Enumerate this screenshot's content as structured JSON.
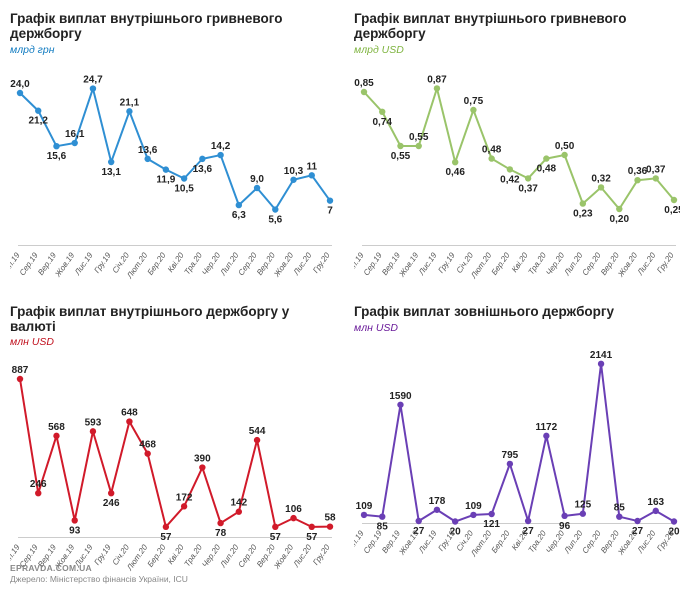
{
  "background_color": "#ffffff",
  "x_categories": [
    "Лип.19",
    "Сер.19",
    "Вер.19",
    "Жов.19",
    "Лис.19",
    "Гру.19",
    "Січ.20",
    "Лют.20",
    "Бер.20",
    "Кві.20",
    "Тра.20",
    "Чер.20",
    "Лип.20",
    "Сер.20",
    "Вер.20",
    "Жов.20",
    "Лис.20",
    "Гру.20"
  ],
  "x_label_fontsize": 8,
  "x_label_rotation_deg": -55,
  "value_label_fontsize": 10,
  "value_label_fontweight": "bold",
  "charts": [
    {
      "title": "Графік виплат внутрішнього гривневого держборгу",
      "subtitle": "млрд грн",
      "subtitle_color": "#0f7ac0",
      "line_color": "#2f8fd3",
      "line_width": 2,
      "marker_color": "#2f8fd3",
      "marker_size": 3.2,
      "ylim": [
        0,
        27
      ],
      "values": [
        24.0,
        21.2,
        15.6,
        16.1,
        24.7,
        13.1,
        21.1,
        13.6,
        11.9,
        10.5,
        13.6,
        14.2,
        6.3,
        9.0,
        5.6,
        10.3,
        11,
        7
      ],
      "labels": [
        "24,0",
        "21,2",
        "15,6",
        "16,1",
        "24,7",
        "13,1",
        "21,1",
        "13,6",
        "11,9",
        "10,5",
        "13,6",
        "14,2",
        "6,3",
        "9,0",
        "5,6",
        "10,3",
        "11",
        "7"
      ],
      "label_positions": [
        "above",
        "below",
        "below",
        "above",
        "above",
        "below",
        "above",
        "above",
        "below",
        "below",
        "below",
        "above",
        "below",
        "above",
        "below",
        "above",
        "above",
        "below"
      ]
    },
    {
      "title": "Графік виплат внутрішнього гривневого держборгу",
      "subtitle": "млрд USD",
      "subtitle_color": "#7fb440",
      "line_color": "#9ac46a",
      "line_width": 2,
      "marker_color": "#9ac46a",
      "marker_size": 3.2,
      "ylim": [
        0,
        0.95
      ],
      "values": [
        0.85,
        0.74,
        0.55,
        0.55,
        0.87,
        0.46,
        0.75,
        0.48,
        0.42,
        0.37,
        0.48,
        0.5,
        0.23,
        0.32,
        0.2,
        0.36,
        0.37,
        0.25
      ],
      "labels": [
        "0,85",
        "0,74",
        "0,55",
        "0,55",
        "0,87",
        "0,46",
        "0,75",
        "0,48",
        "0,42",
        "0,37",
        "0,48",
        "0,50",
        "0,23",
        "0,32",
        "0,20",
        "0,36",
        "0,37",
        "0,25"
      ],
      "label_positions": [
        "above",
        "below",
        "below",
        "above",
        "above",
        "below",
        "above",
        "above",
        "below",
        "below",
        "below",
        "above",
        "below",
        "above",
        "below",
        "above",
        "above",
        "below"
      ]
    },
    {
      "title": "Графік виплат внутрішнього держборгу у валюті",
      "subtitle": "млн USD",
      "subtitle_color": "#c1121f",
      "line_color": "#d11a2a",
      "line_width": 2,
      "marker_color": "#d11a2a",
      "marker_size": 3.2,
      "ylim": [
        0,
        960
      ],
      "values": [
        887,
        246,
        568,
        93,
        593,
        246,
        648,
        468,
        57,
        172,
        390,
        78,
        142,
        544,
        57,
        106,
        57,
        58
      ],
      "labels": [
        "887",
        "246",
        "568",
        "93",
        "593",
        "246",
        "648",
        "468",
        "57",
        "172",
        "390",
        "78",
        "142",
        "544",
        "57",
        "106",
        "57",
        "58"
      ],
      "label_positions": [
        "above",
        "above",
        "above",
        "below",
        "above",
        "below",
        "above",
        "above",
        "below",
        "above",
        "above",
        "below",
        "above",
        "above",
        "below",
        "above",
        "below",
        "above"
      ]
    },
    {
      "title": "Графік виплат зовнішнього держборгу",
      "subtitle": "млн USD",
      "subtitle_color": "#6a1b9a",
      "line_color": "#6a3fb5",
      "line_width": 2,
      "marker_color": "#6a3fb5",
      "marker_size": 3.2,
      "ylim": [
        0,
        2300
      ],
      "values": [
        109,
        85,
        1590,
        27,
        178,
        20,
        109,
        121,
        795,
        27,
        1172,
        96,
        125,
        2141,
        85,
        27,
        163,
        20
      ],
      "labels": [
        "109",
        "85",
        "1590",
        "27",
        "178",
        "20",
        "109",
        "121",
        "795",
        "27",
        "1172",
        "96",
        "125",
        "2141",
        "85",
        "27",
        "163",
        "20"
      ],
      "label_positions": [
        "above",
        "below",
        "above",
        "below",
        "above",
        "below",
        "above",
        "below",
        "above",
        "below",
        "above",
        "below",
        "above",
        "above",
        "above",
        "below",
        "above",
        "below"
      ]
    }
  ],
  "footer": {
    "brand": "EPRAVDA.COM.UA",
    "source": "Джерело: Міністерство фінансів України, ICU"
  }
}
